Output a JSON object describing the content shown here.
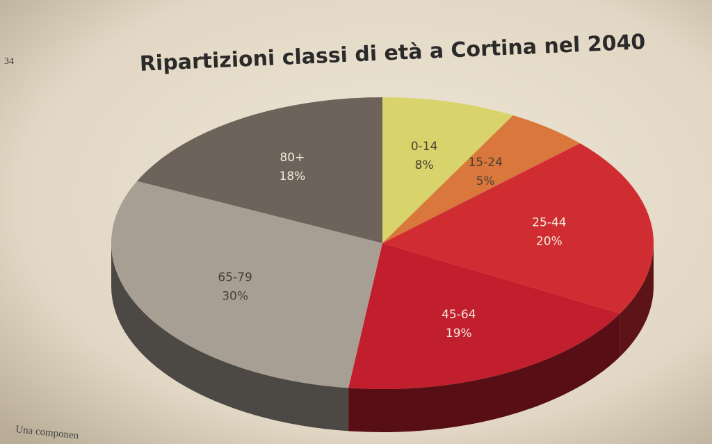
{
  "page_number": "34",
  "footer_text": "Una componen",
  "chart_data": {
    "type": "pie",
    "title": "Ripartizioni classi di età a Cortina nel 2040",
    "categories": [
      "0-14",
      "15-24",
      "25-44",
      "45-64",
      "65-79",
      "80+"
    ],
    "values": [
      8,
      5,
      20,
      19,
      30,
      18
    ],
    "value_labels": [
      "8%",
      "5%",
      "20%",
      "19%",
      "30%",
      "18%"
    ],
    "colors": [
      "#d8d36a",
      "#d9773c",
      "#cf2d31",
      "#c21f2e",
      "#a89f94",
      "#6d635b"
    ]
  }
}
